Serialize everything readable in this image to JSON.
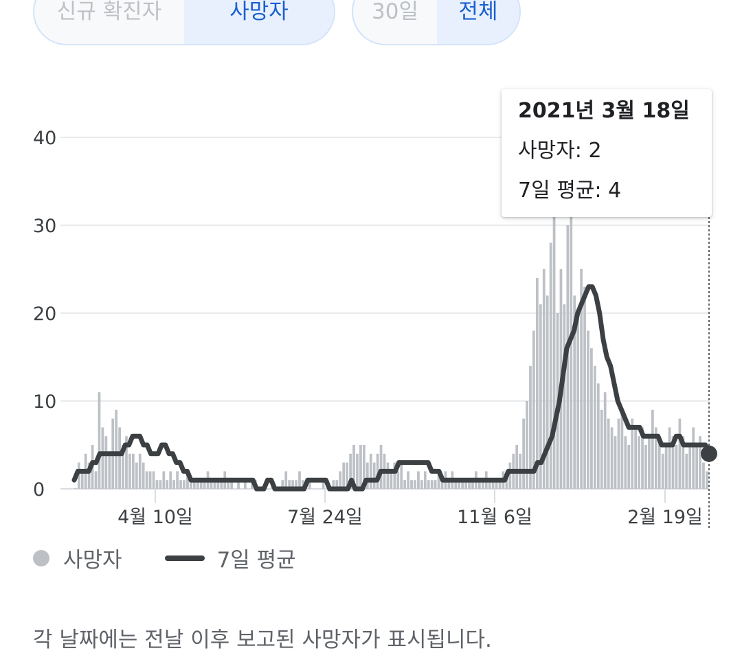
{
  "toggles": {
    "metric": {
      "options": [
        "신규 확진자",
        "사망자"
      ],
      "selected": "사망자"
    },
    "range": {
      "options": [
        "30일",
        "전체"
      ],
      "selected": "전체"
    }
  },
  "tooltip": {
    "date": "2021년 3월 18일",
    "deaths_label": "사망자: 2",
    "avg_label": "7일 평균: 4"
  },
  "legend": {
    "bars": "사망자",
    "line": "7일 평균"
  },
  "footnote": "각 날짜에는 전날 이후 보고된 사망자가 표시됩니다.",
  "colors": {
    "bar": "#bdc1c6",
    "line": "#3c4043",
    "accent": "#1a5fcf",
    "grid": "#e8eaed"
  },
  "chart_data": {
    "type": "bar",
    "title": "",
    "xlabel": "",
    "ylabel": "",
    "ylim": [
      0,
      45
    ],
    "yticks": [
      0,
      10,
      20,
      30,
      40
    ],
    "xticks": [
      "4월 10일",
      "7월 24일",
      "11월 6일",
      "2월 19일"
    ],
    "legend_position": "bottom-left",
    "grid": true,
    "series": [
      {
        "name": "사망자",
        "type": "bar",
        "values_by_period": [
          [
            0.1,
            3,
            2,
            4,
            3,
            5,
            2,
            11,
            7,
            6,
            4,
            8,
            9,
            7,
            5,
            6,
            4,
            4,
            3,
            4,
            3,
            2,
            2,
            2,
            1,
            1,
            2,
            1,
            2,
            1,
            2,
            1,
            1,
            2,
            1,
            1,
            1,
            1,
            1,
            2,
            1,
            1,
            1,
            1,
            2,
            1,
            1,
            0,
            1,
            0,
            1,
            0,
            1,
            1,
            0,
            0,
            0,
            0,
            1,
            0,
            0,
            1,
            2,
            1,
            1,
            1,
            2,
            1,
            0,
            1,
            0,
            0,
            0,
            1,
            0,
            0,
            1,
            1,
            2,
            3,
            3,
            4,
            5,
            4,
            5,
            5,
            3,
            4,
            3,
            4,
            5,
            4,
            3,
            2,
            3,
            2,
            3,
            1,
            2,
            1,
            1,
            2,
            1,
            2,
            1,
            1,
            1,
            2,
            1,
            2,
            1,
            2,
            1,
            1,
            1,
            1,
            1,
            1,
            2,
            1,
            1,
            2,
            1,
            1,
            1,
            1,
            2,
            2,
            3,
            4,
            5,
            4,
            8,
            10,
            14,
            18,
            24,
            21,
            25,
            22,
            28,
            35,
            20,
            25,
            21,
            30,
            35,
            22,
            20,
            25,
            23,
            18,
            16,
            14,
            12,
            9,
            11,
            8,
            7,
            6,
            8,
            9,
            6,
            5,
            8,
            7,
            6,
            7,
            5,
            6,
            9,
            7,
            6,
            4,
            5,
            7,
            6,
            5,
            8,
            6,
            4,
            5,
            7,
            5,
            6,
            3,
            2
          ]
        ]
      },
      {
        "name": "7일 평균",
        "type": "line",
        "values": [
          1,
          2,
          2,
          2,
          2,
          3,
          3,
          4,
          4,
          4,
          4,
          4,
          4,
          4,
          5,
          5,
          6,
          6,
          6,
          5,
          5,
          4,
          4,
          4,
          5,
          5,
          4,
          4,
          3,
          3,
          2,
          2,
          1,
          1,
          1,
          1,
          1,
          1,
          1,
          1,
          1,
          1,
          1,
          1,
          1,
          1,
          1,
          1,
          1,
          1,
          0,
          0,
          0,
          1,
          1,
          0,
          0,
          0,
          0,
          0,
          0,
          0,
          0,
          0,
          1,
          1,
          1,
          1,
          1,
          1,
          0,
          0,
          0,
          0,
          0,
          0,
          1,
          0,
          0,
          0,
          1,
          1,
          1,
          1,
          2,
          2,
          2,
          2,
          2,
          3,
          3,
          3,
          3,
          3,
          3,
          3,
          3,
          3,
          2,
          2,
          2,
          1,
          1,
          1,
          1,
          1,
          1,
          1,
          1,
          1,
          1,
          1,
          1,
          1,
          1,
          1,
          1,
          1,
          1,
          2,
          2,
          2,
          2,
          2,
          2,
          2,
          2,
          3,
          3,
          4,
          5,
          6,
          8,
          10,
          13,
          16,
          17,
          18,
          20,
          21,
          22,
          23,
          23,
          22,
          20,
          17,
          15,
          14,
          12,
          10,
          9,
          8,
          7,
          7,
          7,
          7,
          6,
          6,
          6,
          6,
          6,
          5,
          5,
          5,
          5,
          6,
          6,
          5,
          5,
          5,
          5,
          5,
          5,
          5,
          4
        ],
        "last_point": 4
      }
    ]
  }
}
